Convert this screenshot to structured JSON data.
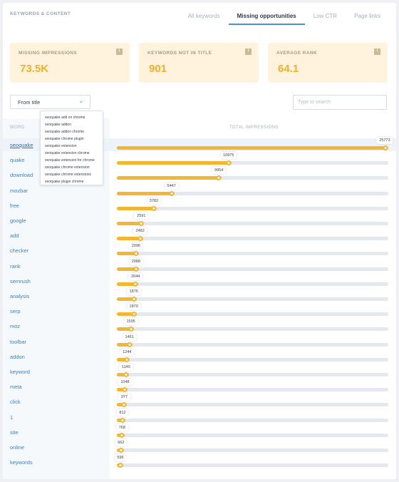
{
  "section_title": "KEYWORDS & CONTENT",
  "tabs": [
    {
      "label": "All keywords",
      "active": false
    },
    {
      "label": "Missing opportunities",
      "active": true
    },
    {
      "label": "Low CTR",
      "active": false
    },
    {
      "label": "Page links",
      "active": false
    }
  ],
  "stats": [
    {
      "label": "MISSING IMPRESSIONS",
      "value": "73.5K",
      "icon": "info-icon"
    },
    {
      "label": "KEYWORDS NOT IN TITLE",
      "value": "901",
      "icon": "info-icon"
    },
    {
      "label": "AVERAGE RANK",
      "value": "64.1",
      "icon": "info-icon"
    }
  ],
  "filter": {
    "selected": "From title",
    "chevron_icon": "chevron-down-icon"
  },
  "search": {
    "placeholder": "Type to search",
    "value": ""
  },
  "columns": {
    "word": "WORD",
    "impressions": "TOTAL IMPRESSIONS"
  },
  "max_impressions": 25773,
  "rows": [
    {
      "word": "seoquake",
      "impressions": 25773
    },
    {
      "word": "quake",
      "impressions": 10875
    },
    {
      "word": "download",
      "impressions": 9954
    },
    {
      "word": "mozbar",
      "impressions": 5447
    },
    {
      "word": "free",
      "impressions": 3782
    },
    {
      "word": "google",
      "impressions": 2591
    },
    {
      "word": "add",
      "impressions": 2482
    },
    {
      "word": "checker",
      "impressions": 2096
    },
    {
      "word": "rank",
      "impressions": 2088
    },
    {
      "word": "semrush",
      "impressions": 2044
    },
    {
      "word": "analysis",
      "impressions": 1876
    },
    {
      "word": "serp",
      "impressions": 1870
    },
    {
      "word": "moz",
      "impressions": 1595
    },
    {
      "word": "toolbar",
      "impressions": 1461
    },
    {
      "word": "addon",
      "impressions": 1244
    },
    {
      "word": "keyword",
      "impressions": 1140
    },
    {
      "word": "meta",
      "impressions": 1048
    },
    {
      "word": "click",
      "impressions": 977
    },
    {
      "word": "1",
      "impressions": 812
    },
    {
      "word": "site",
      "impressions": 768
    },
    {
      "word": "online",
      "impressions": 662
    },
    {
      "word": "keywords",
      "impressions": 596
    }
  ],
  "popup_items": [
    "seoquake add on chrome",
    "seoquake addon",
    "seoquake addon chrome",
    "seoquake chrome plugin",
    "seoquake extension",
    "seoquake extension chrome",
    "seoquake extension for chrome",
    "seoquake chrome extension",
    "seoquake chrome extensions",
    "seoquake plugin chrome"
  ],
  "colors": {
    "accent": "#f2b632",
    "link": "#3b82c4",
    "tab_underline": "#4c93c9",
    "stat_bg": "#fff3de"
  }
}
